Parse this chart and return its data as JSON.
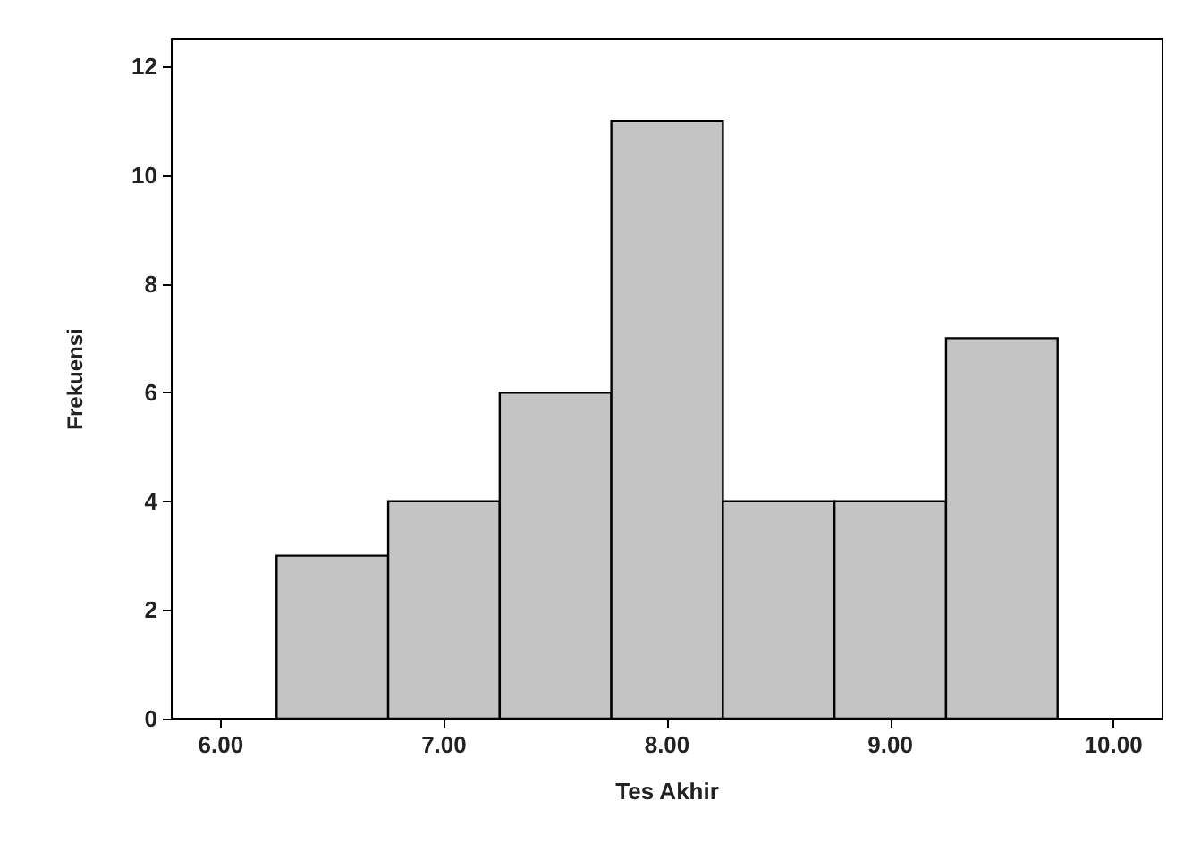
{
  "chart_data": {
    "type": "histogram",
    "xlabel": "Tes Akhir",
    "ylabel": "Frekuensi",
    "bins": [
      6.25,
      6.75,
      7.25,
      7.75,
      8.25,
      8.75,
      9.25,
      9.75
    ],
    "values": [
      3,
      4,
      6,
      11,
      4,
      4,
      7
    ],
    "color": "#c4c4c4",
    "xlim": [
      5.78,
      10.22
    ],
    "ylim": [
      0,
      12.5
    ],
    "xticks": [
      {
        "value": 6,
        "label": "6.00"
      },
      {
        "value": 7,
        "label": "7.00"
      },
      {
        "value": 8,
        "label": "8.00"
      },
      {
        "value": 9,
        "label": "9.00"
      },
      {
        "value": 10,
        "label": "10.00"
      }
    ],
    "yticks": [
      0,
      2,
      4,
      6,
      8,
      10,
      12
    ],
    "grid": false
  }
}
